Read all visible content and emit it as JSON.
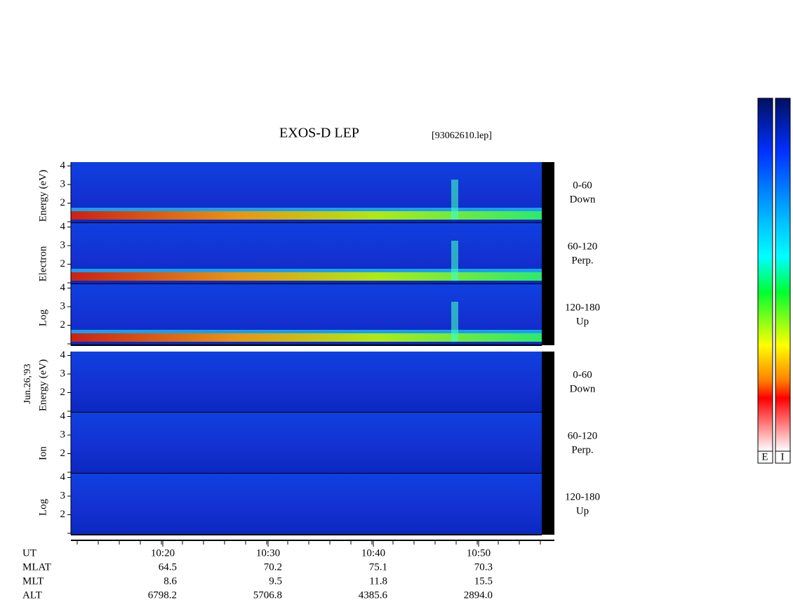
{
  "title": "EXOS-D LEP",
  "file": "[93062610.lep]",
  "date": "Jun.26,'93",
  "electron": {
    "axis_words": [
      "Log",
      "Electron",
      "Energy (eV)"
    ],
    "panels": [
      {
        "range": "0-60",
        "dir": "Down"
      },
      {
        "range": "60-120",
        "dir": "Perp."
      },
      {
        "range": "120-180",
        "dir": "Up"
      }
    ]
  },
  "ion": {
    "axis_words": [
      "Log",
      "Ion",
      "Energy (eV)"
    ],
    "panels": [
      {
        "range": "0-60",
        "dir": "Down"
      },
      {
        "range": "60-120",
        "dir": "Perp."
      },
      {
        "range": "120-180",
        "dir": "Up"
      }
    ]
  },
  "yticks": [
    2,
    3,
    4
  ],
  "ephemeris": {
    "labels": [
      "UT",
      "MLAT",
      "MLT",
      "ALT"
    ],
    "columns": [
      [
        "10:20",
        "64.5",
        "8.6",
        "6798.2"
      ],
      [
        "10:30",
        "70.2",
        "9.5",
        "5706.8"
      ],
      [
        "10:40",
        "75.1",
        "11.8",
        "4385.6"
      ],
      [
        "10:50",
        "70.3",
        "15.5",
        "2894.0"
      ]
    ]
  },
  "colorbar": [
    "E",
    "I"
  ]
}
